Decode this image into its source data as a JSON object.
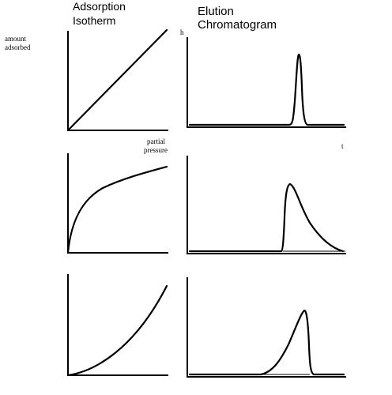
{
  "headings": {
    "isotherm_line1": "Adsorption",
    "isotherm_line2": "Isotherm",
    "chromatogram_line1": "Elution",
    "chromatogram_line2": "Chromatogram"
  },
  "axis_labels": {
    "isotherm_y_line1": "amount",
    "isotherm_y_line2": "adsorbed",
    "isotherm_x_line1": "partial",
    "isotherm_x_line2": "pressure",
    "chromatogram_y": "h",
    "chromatogram_x": "t"
  },
  "rows": [
    {
      "isotherm_shape": "linear",
      "peak_shape": "symmetric"
    },
    {
      "isotherm_shape": "concave",
      "peak_shape": "tailing"
    },
    {
      "isotherm_shape": "convex",
      "peak_shape": "fronting"
    }
  ]
}
